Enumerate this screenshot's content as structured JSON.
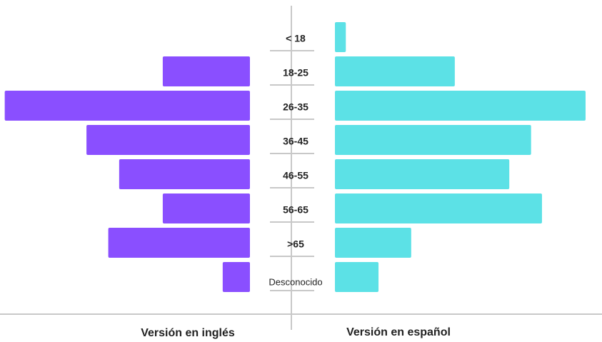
{
  "chart_data": {
    "type": "butterfly",
    "categories": [
      "< 18",
      "18-25",
      "26-35",
      "36-45",
      "46-55",
      "56-65",
      ">65",
      "Desconocido"
    ],
    "series": [
      {
        "name": "Versión en inglés",
        "color": "#8a4fff",
        "values": [
          0,
          8,
          22.5,
          15,
          12,
          8,
          13,
          2.5
        ]
      },
      {
        "name": "Versión en español",
        "color": "#5ce1e6",
        "values": [
          1,
          11,
          23,
          18,
          16,
          19,
          7,
          4
        ]
      }
    ],
    "xlim": [
      0,
      23
    ]
  }
}
